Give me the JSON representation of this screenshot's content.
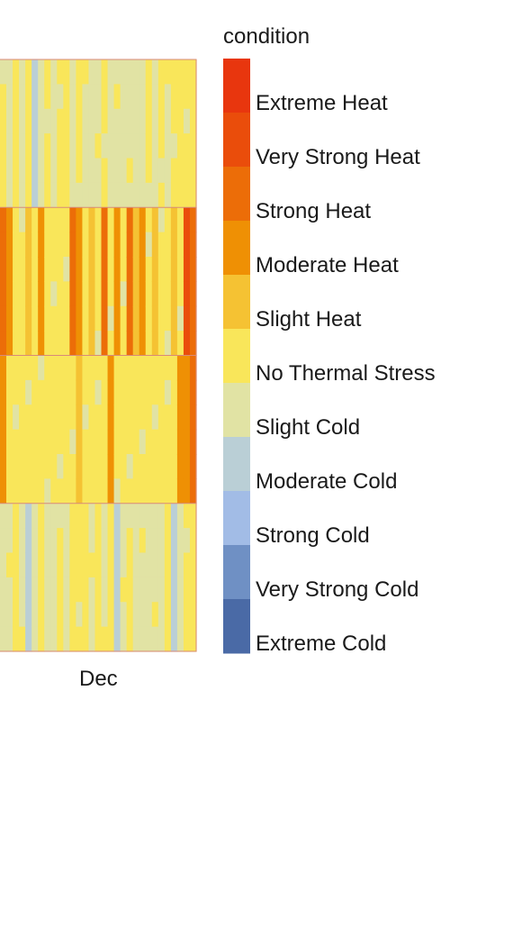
{
  "chart_data": {
    "type": "heatmap",
    "x_tick_labels": [
      "Dec"
    ],
    "row_bands": 4,
    "legend": {
      "title": "condition",
      "categories": [
        {
          "label": "Extreme Heat",
          "color": "#e8360e"
        },
        {
          "label": "Very Strong Heat",
          "color": "#ea4d0b"
        },
        {
          "label": "Strong Heat",
          "color": "#ec6d08"
        },
        {
          "label": "Moderate Heat",
          "color": "#ef9004"
        },
        {
          "label": "Slight Heat",
          "color": "#f5c233"
        },
        {
          "label": "No Thermal Stress",
          "color": "#f9e65a"
        },
        {
          "label": "Slight Cold",
          "color": "#e1e3a4"
        },
        {
          "label": "Moderate Cold",
          "color": "#bacfd6"
        },
        {
          "label": "Strong Cold",
          "color": "#a2bce6"
        },
        {
          "label": "Very Strong Cold",
          "color": "#6f90c4"
        },
        {
          "label": "Extreme Cold",
          "color": "#4a6aa6"
        }
      ]
    },
    "band_cells": [
      [
        "No Thermal Stress",
        "Slight Cold",
        "No Thermal Stress",
        "Slight Cold",
        "No Thermal Stress",
        "Moderate Cold",
        "Slight Cold",
        "No Thermal Stress",
        "Slight Cold",
        "No Thermal Stress",
        "No Thermal Stress",
        "Slight Cold",
        "No Thermal Stress",
        "Slight Cold",
        "Slight Cold",
        "Slight Cold",
        "No Thermal Stress",
        "Slight Cold",
        "Slight Cold",
        "Slight Cold",
        "Slight Cold",
        "Slight Cold",
        "Slight Cold",
        "No Thermal Stress",
        "Slight Cold",
        "No Thermal Stress",
        "Slight Cold",
        "No Thermal Stress",
        "No Thermal Stress",
        "No Thermal Stress",
        "No Thermal Stress"
      ],
      [
        "Strong Heat",
        "Moderate Heat",
        "No Thermal Stress",
        "No Thermal Stress",
        "Slight Heat",
        "No Thermal Stress",
        "Moderate Heat",
        "No Thermal Stress",
        "No Thermal Stress",
        "No Thermal Stress",
        "No Thermal Stress",
        "Strong Heat",
        "Moderate Heat",
        "No Thermal Stress",
        "Slight Heat",
        "No Thermal Stress",
        "Strong Heat",
        "No Thermal Stress",
        "Moderate Heat",
        "No Thermal Stress",
        "Strong Heat",
        "Slight Heat",
        "Moderate Heat",
        "No Thermal Stress",
        "Slight Heat",
        "No Thermal Stress",
        "No Thermal Stress",
        "Slight Heat",
        "No Thermal Stress",
        "Very Strong Heat",
        "Strong Heat"
      ],
      [
        "Moderate Heat",
        "No Thermal Stress",
        "No Thermal Stress",
        "No Thermal Stress",
        "No Thermal Stress",
        "No Thermal Stress",
        "No Thermal Stress",
        "No Thermal Stress",
        "No Thermal Stress",
        "No Thermal Stress",
        "No Thermal Stress",
        "No Thermal Stress",
        "Slight Heat",
        "No Thermal Stress",
        "No Thermal Stress",
        "No Thermal Stress",
        "No Thermal Stress",
        "Moderate Heat",
        "No Thermal Stress",
        "No Thermal Stress",
        "No Thermal Stress",
        "No Thermal Stress",
        "No Thermal Stress",
        "No Thermal Stress",
        "No Thermal Stress",
        "No Thermal Stress",
        "No Thermal Stress",
        "No Thermal Stress",
        "Moderate Heat",
        "Moderate Heat",
        "Strong Heat"
      ],
      [
        "Slight Cold",
        "Slight Cold",
        "No Thermal Stress",
        "Slight Cold",
        "Moderate Cold",
        "Slight Cold",
        "No Thermal Stress",
        "Slight Cold",
        "Slight Cold",
        "No Thermal Stress",
        "Slight Cold",
        "No Thermal Stress",
        "No Thermal Stress",
        "No Thermal Stress",
        "Slight Cold",
        "No Thermal Stress",
        "Slight Cold",
        "No Thermal Stress",
        "Moderate Cold",
        "Slight Cold",
        "No Thermal Stress",
        "Slight Cold",
        "Slight Cold",
        "Slight Cold",
        "Slight Cold",
        "Slight Cold",
        "No Thermal Stress",
        "Moderate Cold",
        "Slight Cold",
        "No Thermal Stress",
        "No Thermal Stress"
      ]
    ]
  }
}
